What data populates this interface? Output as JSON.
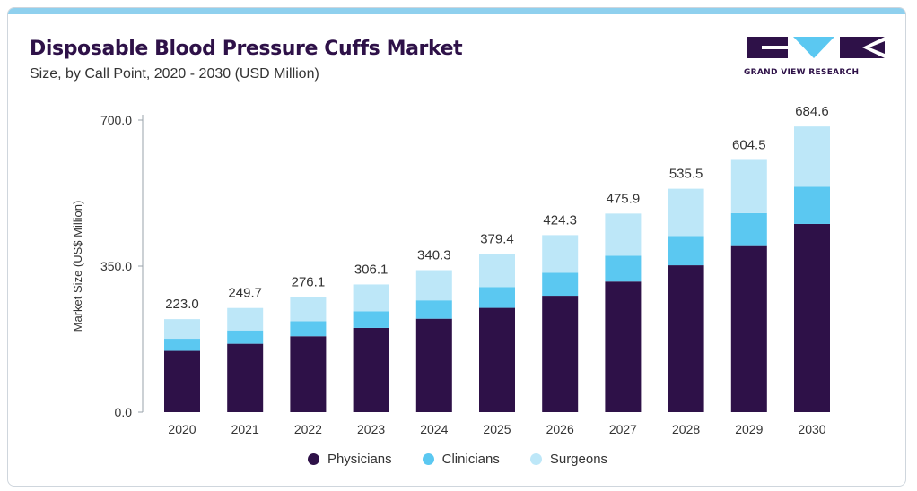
{
  "title": "Disposable Blood Pressure Cuffs Market",
  "subtitle": "Size, by Call Point, 2020 - 2030 (USD Million)",
  "logo": {
    "text": "GRAND VIEW RESEARCH"
  },
  "colors": {
    "Physicians": "#2e1148",
    "Clinicians": "#5bc8f1",
    "Surgeons": "#bde7f8",
    "axis": "#9aa3ab",
    "text": "#333333",
    "topbar": "#8fd0ee"
  },
  "chart_data": {
    "type": "bar",
    "stacked": true,
    "categories": [
      "2020",
      "2021",
      "2022",
      "2023",
      "2024",
      "2025",
      "2026",
      "2027",
      "2028",
      "2029",
      "2030"
    ],
    "series": [
      {
        "name": "Physicians",
        "values": [
          147,
          164,
          182,
          202,
          224,
          250,
          279,
          313,
          352,
          398,
          451
        ]
      },
      {
        "name": "Clinicians",
        "values": [
          29,
          32,
          36,
          40,
          44,
          50,
          55,
          62,
          70,
          79,
          89
        ]
      },
      {
        "name": "Surgeons",
        "values": [
          47,
          53.7,
          58.1,
          64.1,
          72.3,
          79.4,
          90.3,
          100.9,
          113.5,
          127.5,
          144.6
        ]
      }
    ],
    "totals": [
      "223.0",
      "249.7",
      "276.1",
      "306.1",
      "340.3",
      "379.4",
      "424.3",
      "475.9",
      "535.5",
      "604.5",
      "684.6"
    ],
    "ylabel": "Market Size (US$ Million)",
    "xlabel": "",
    "ylim": [
      0,
      700
    ],
    "yticks": [
      {
        "value": 0,
        "label": "0.0"
      },
      {
        "value": 350,
        "label": "350.0"
      },
      {
        "value": 700,
        "label": "700.0"
      }
    ],
    "grid": false,
    "legend": "bottom-center"
  }
}
